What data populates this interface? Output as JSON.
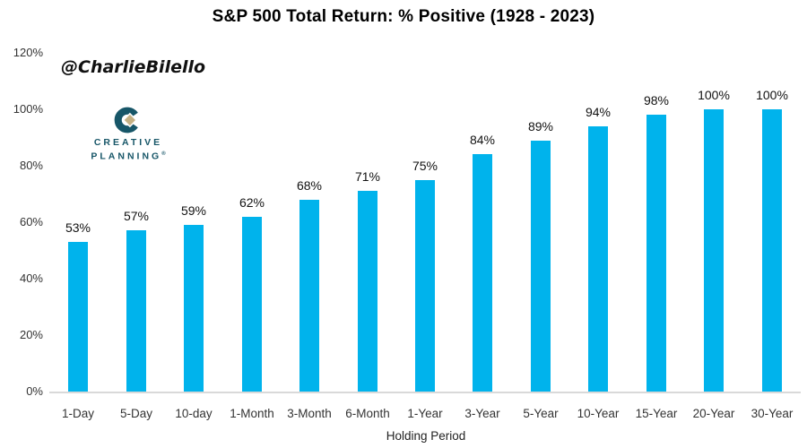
{
  "watermark": "@CharlieBilello",
  "logo": {
    "line1": "CREATIVE",
    "line2": "PLANNING",
    "trademark": "®",
    "teal": "#175668",
    "gold": "#C5B184"
  },
  "chart_data": {
    "type": "bar",
    "title": "S&P 500 Total Return: % Positive (1928 - 2023)",
    "categories": [
      "1-Day",
      "5-Day",
      "10-day",
      "1-Month",
      "3-Month",
      "6-Month",
      "1-Year",
      "3-Year",
      "5-Year",
      "10-Year",
      "15-Year",
      "20-Year",
      "30-Year"
    ],
    "values": [
      53,
      57,
      59,
      62,
      68,
      71,
      75,
      84,
      89,
      94,
      98,
      100,
      100
    ],
    "data_labels": [
      "53%",
      "57%",
      "59%",
      "62%",
      "68%",
      "71%",
      "75%",
      "84%",
      "89%",
      "94%",
      "98%",
      "100%",
      "100%"
    ],
    "xlabel": "Holding Period",
    "ylabel": "",
    "ylim": [
      0,
      120
    ],
    "ytick_step": 20,
    "ytick_labels": [
      "0%",
      "20%",
      "40%",
      "60%",
      "80%",
      "100%",
      "120%"
    ],
    "grid": false,
    "legend": "none",
    "bar_color": "#00B3EC",
    "axis_line_color": "#D9D9D9",
    "label_color": "#333333"
  }
}
